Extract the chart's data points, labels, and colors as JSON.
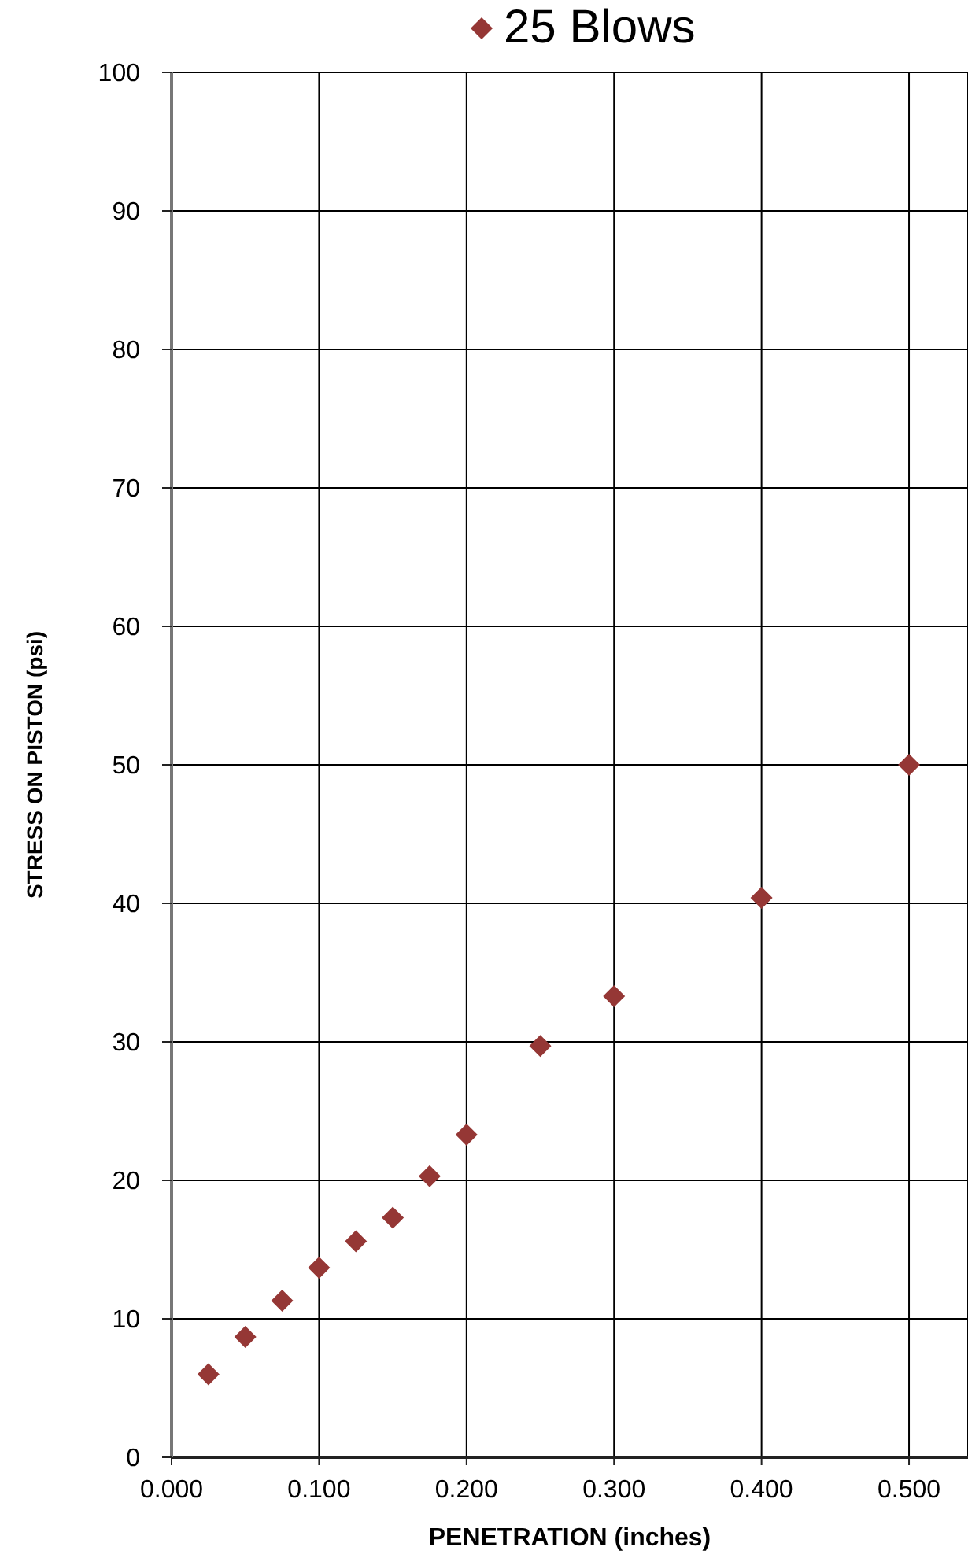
{
  "chart_data": {
    "type": "scatter",
    "xlabel": "PENETRATION (inches)",
    "ylabel": "STRESS ON PISTON (psi)",
    "x": [
      0.025,
      0.05,
      0.075,
      0.1,
      0.125,
      0.15,
      0.175,
      0.2,
      0.25,
      0.3,
      0.4,
      0.5
    ],
    "series": [
      {
        "name": "25 Blows",
        "color": "#953735",
        "values": [
          6.0,
          8.7,
          11.3,
          13.7,
          15.6,
          17.3,
          20.3,
          23.3,
          29.7,
          33.3,
          40.4,
          50.0
        ]
      }
    ],
    "xlim": [
      0,
      0.54
    ],
    "xticks": [
      {
        "value": 0,
        "label": "0.000"
      },
      {
        "value": 0.1,
        "label": "0.100"
      },
      {
        "value": 0.2,
        "label": "0.200"
      },
      {
        "value": 0.3,
        "label": "0.300"
      },
      {
        "value": 0.4,
        "label": "0.400"
      },
      {
        "value": 0.5,
        "label": "0.500"
      }
    ],
    "ylim": [
      0,
      100
    ],
    "yticks": [
      0,
      10,
      20,
      30,
      40,
      50,
      60,
      70,
      80,
      90,
      100
    ],
    "grid": true,
    "legend": "top",
    "marker": "diamond"
  }
}
